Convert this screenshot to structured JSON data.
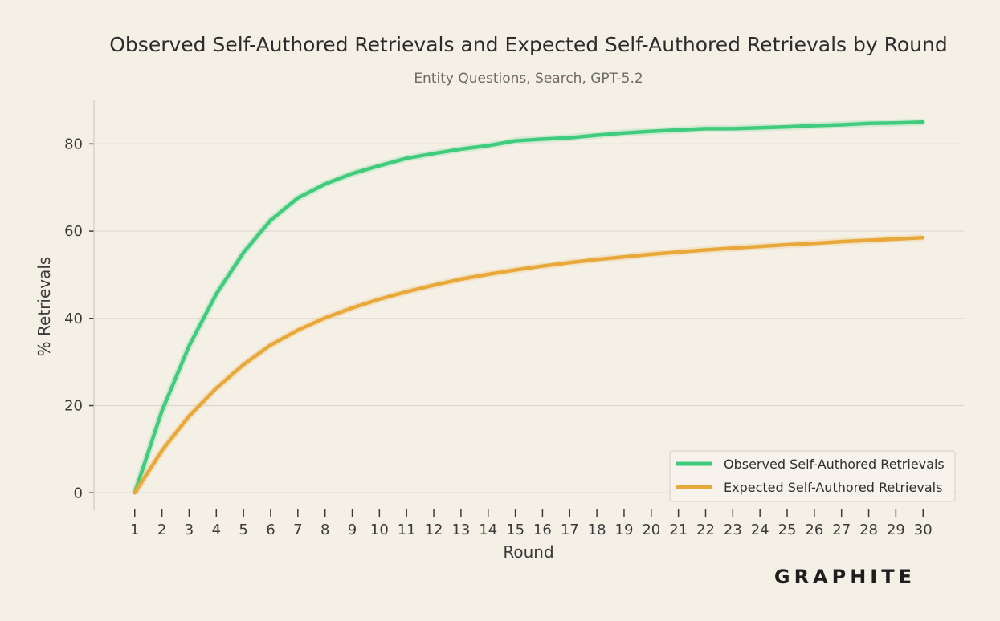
{
  "brand": "GRAPHITE",
  "chart_data": {
    "type": "line",
    "title": "Observed Self-Authored Retrievals and Expected Self-Authored Retrievals by Round",
    "subtitle": "Entity Questions, Search, GPT-5.2",
    "xlabel": "Round",
    "ylabel": "% Retrievals",
    "x": [
      1,
      2,
      3,
      4,
      5,
      6,
      7,
      8,
      9,
      10,
      11,
      12,
      13,
      14,
      15,
      16,
      17,
      18,
      19,
      20,
      21,
      22,
      23,
      24,
      25,
      26,
      27,
      28,
      29,
      30
    ],
    "yticks": [
      0,
      20,
      40,
      60,
      80
    ],
    "ylim": [
      -4,
      90
    ],
    "xlim": [
      -0.5,
      31.5
    ],
    "grid": true,
    "legend_position": "bottom-right",
    "series": [
      {
        "name": "Observed Self-Authored Retrievals",
        "color": "#3fcc7c",
        "values": [
          0,
          18.8,
          33.7,
          45.6,
          55.1,
          62.5,
          67.6,
          70.8,
          73.2,
          75.0,
          76.7,
          77.8,
          78.8,
          79.6,
          80.7,
          81.1,
          81.4,
          82.0,
          82.5,
          82.9,
          83.2,
          83.5,
          83.5,
          83.7,
          83.9,
          84.2,
          84.4,
          84.7,
          84.8,
          85.0
        ]
      },
      {
        "name": "Expected Self-Authored Retrievals",
        "color": "#e8a93a",
        "values": [
          0,
          9.7,
          17.6,
          24.0,
          29.4,
          33.9,
          37.3,
          40.1,
          42.4,
          44.4,
          46.1,
          47.6,
          49.0,
          50.1,
          51.1,
          52.0,
          52.8,
          53.5,
          54.1,
          54.7,
          55.2,
          55.7,
          56.1,
          56.5,
          56.9,
          57.2,
          57.6,
          57.9,
          58.2,
          58.5
        ]
      }
    ]
  }
}
